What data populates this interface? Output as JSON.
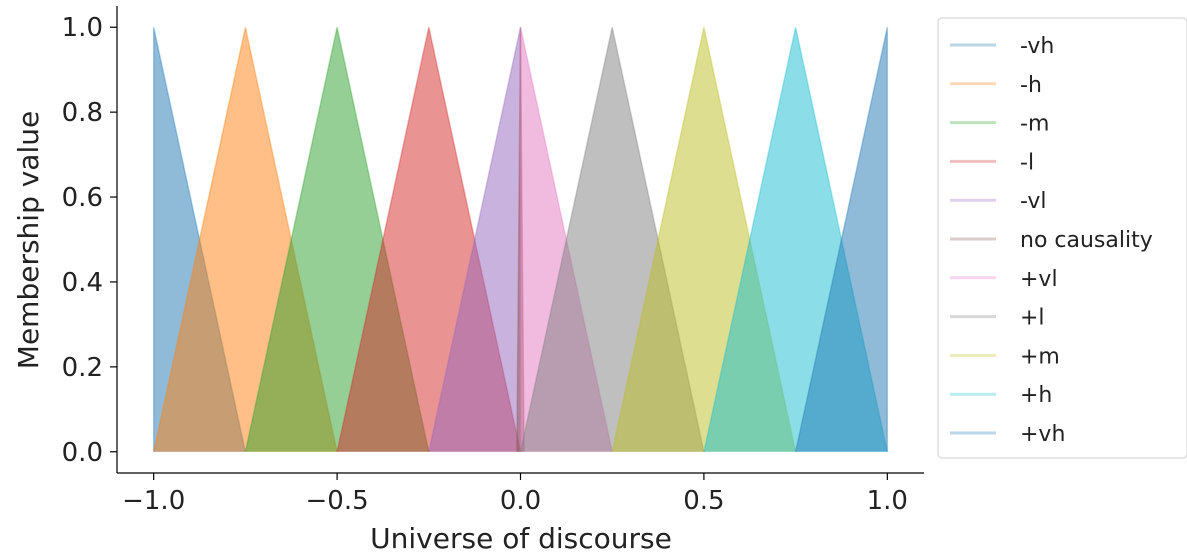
{
  "chart_data": {
    "type": "area",
    "xlabel": "Universe of discourse",
    "ylabel": "Membership value",
    "xlim": [
      -1.1,
      1.1
    ],
    "ylim": [
      -0.05,
      1.05
    ],
    "xticks": [
      -1.0,
      -0.5,
      0.0,
      0.5,
      1.0
    ],
    "xtick_labels": [
      "−1.0",
      "−0.5",
      "0.0",
      "0.5",
      "1.0"
    ],
    "yticks": [
      0.0,
      0.2,
      0.4,
      0.6,
      0.8,
      1.0
    ],
    "ytick_labels": [
      "0.0",
      "0.2",
      "0.4",
      "0.6",
      "0.8",
      "1.0"
    ],
    "grid": false,
    "legend_position": "right-outside",
    "series": [
      {
        "name": "-vh",
        "color": "#1f77b4",
        "points": [
          [
            -1.0,
            0
          ],
          [
            -1.0,
            1
          ],
          [
            -0.75,
            0
          ]
        ]
      },
      {
        "name": "-h",
        "color": "#ff7f0e",
        "points": [
          [
            -1.0,
            0
          ],
          [
            -0.75,
            1
          ],
          [
            -0.5,
            0
          ]
        ]
      },
      {
        "name": "-m",
        "color": "#2ca02c",
        "points": [
          [
            -0.75,
            0
          ],
          [
            -0.5,
            1
          ],
          [
            -0.25,
            0
          ]
        ]
      },
      {
        "name": "-l",
        "color": "#d62728",
        "points": [
          [
            -0.5,
            0
          ],
          [
            -0.25,
            1
          ],
          [
            0.0,
            0
          ]
        ]
      },
      {
        "name": "-vl",
        "color": "#9467bd",
        "points": [
          [
            -0.25,
            0
          ],
          [
            0.0,
            1
          ],
          [
            0.0,
            0
          ]
        ]
      },
      {
        "name": "no causality",
        "color": "#8c564b",
        "points": [
          [
            -0.01,
            0
          ],
          [
            0.0,
            1
          ],
          [
            0.01,
            0
          ]
        ]
      },
      {
        "name": "+vl",
        "color": "#e377c2",
        "points": [
          [
            0.0,
            0
          ],
          [
            0.0,
            1
          ],
          [
            0.25,
            0
          ]
        ]
      },
      {
        "name": "+l",
        "color": "#7f7f7f",
        "points": [
          [
            0.0,
            0
          ],
          [
            0.25,
            1
          ],
          [
            0.5,
            0
          ]
        ]
      },
      {
        "name": "+m",
        "color": "#bcbd22",
        "points": [
          [
            0.25,
            0
          ],
          [
            0.5,
            1
          ],
          [
            0.75,
            0
          ]
        ]
      },
      {
        "name": "+h",
        "color": "#17becf",
        "points": [
          [
            0.5,
            0
          ],
          [
            0.75,
            1
          ],
          [
            1.0,
            0
          ]
        ]
      },
      {
        "name": "+vh",
        "color": "#1f77b4",
        "points": [
          [
            0.75,
            0
          ],
          [
            1.0,
            1
          ],
          [
            1.0,
            0
          ]
        ]
      }
    ]
  }
}
